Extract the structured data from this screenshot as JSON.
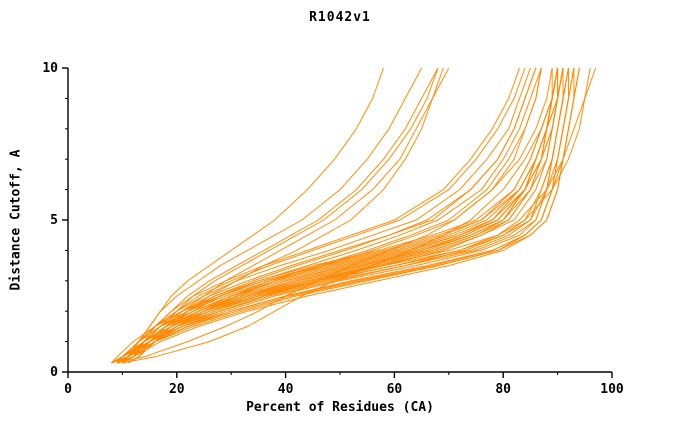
{
  "chart_data": {
    "type": "line",
    "title": "R1042v1",
    "xlabel": "Percent of Residues (CA)",
    "ylabel": "Distance Cutoff, A",
    "xlim": [
      0,
      100
    ],
    "ylim": [
      0,
      10
    ],
    "xticks": [
      0,
      20,
      40,
      60,
      80,
      100
    ],
    "xticks_minor": [
      10,
      30,
      50,
      70,
      90
    ],
    "yticks": [
      0,
      5,
      10
    ],
    "yticks_minor": [
      1,
      2,
      3,
      4,
      6,
      7,
      8,
      9
    ],
    "line_color": "#ff8800",
    "axis_color": "#000000",
    "legend": "none",
    "grid": false,
    "y_samples": [
      0.3,
      0.5,
      1,
      1.5,
      2,
      2.5,
      3,
      3.5,
      4,
      4.5,
      5,
      6,
      7,
      8,
      9,
      10
    ],
    "series": [
      [
        8,
        10,
        15,
        20,
        28,
        36,
        48,
        62,
        75,
        82,
        86,
        88,
        89,
        90,
        91,
        92
      ],
      [
        8,
        10,
        14,
        19,
        26,
        34,
        45,
        58,
        72,
        80,
        85,
        87,
        89,
        90,
        91,
        91
      ],
      [
        9,
        11,
        16,
        22,
        30,
        40,
        52,
        66,
        78,
        84,
        87,
        89,
        90,
        91,
        92,
        93
      ],
      [
        8,
        10,
        15,
        21,
        29,
        38,
        50,
        64,
        76,
        83,
        86,
        88,
        90,
        91,
        92,
        92
      ],
      [
        8,
        11,
        16,
        23,
        32,
        42,
        55,
        68,
        79,
        85,
        88,
        90,
        91,
        92,
        93,
        94
      ],
      [
        9,
        11,
        15,
        20,
        27,
        35,
        46,
        60,
        74,
        81,
        85,
        88,
        89,
        90,
        91,
        92
      ],
      [
        8,
        10,
        14,
        18,
        25,
        33,
        44,
        57,
        70,
        79,
        84,
        87,
        89,
        90,
        91,
        92
      ],
      [
        9,
        12,
        17,
        24,
        33,
        44,
        57,
        70,
        80,
        85,
        88,
        90,
        91,
        92,
        93,
        93
      ],
      [
        8,
        10,
        15,
        21,
        30,
        40,
        53,
        67,
        78,
        84,
        87,
        89,
        90,
        91,
        92,
        93
      ],
      [
        8,
        11,
        16,
        22,
        31,
        41,
        54,
        68,
        79,
        84,
        87,
        89,
        91,
        92,
        93,
        94
      ],
      [
        8,
        10,
        14,
        18,
        24,
        31,
        40,
        52,
        64,
        73,
        79,
        84,
        87,
        88,
        89,
        90
      ],
      [
        9,
        11,
        15,
        19,
        26,
        33,
        43,
        55,
        67,
        75,
        81,
        85,
        87,
        89,
        90,
        90
      ],
      [
        8,
        10,
        13,
        17,
        22,
        29,
        37,
        48,
        60,
        70,
        77,
        83,
        86,
        88,
        89,
        90
      ],
      [
        9,
        11,
        14,
        18,
        23,
        30,
        39,
        50,
        62,
        72,
        78,
        84,
        86,
        88,
        89,
        89
      ],
      [
        8,
        10,
        14,
        19,
        25,
        32,
        42,
        54,
        66,
        74,
        80,
        85,
        87,
        88,
        90,
        91
      ],
      [
        9,
        12,
        16,
        20,
        27,
        35,
        45,
        57,
        68,
        76,
        81,
        85,
        88,
        89,
        90,
        91
      ],
      [
        8,
        10,
        13,
        16,
        21,
        27,
        35,
        45,
        57,
        67,
        75,
        82,
        85,
        87,
        89,
        90
      ],
      [
        9,
        11,
        14,
        17,
        22,
        28,
        36,
        47,
        59,
        69,
        76,
        83,
        86,
        88,
        89,
        90
      ],
      [
        8,
        10,
        13,
        17,
        23,
        30,
        38,
        49,
        61,
        71,
        78,
        83,
        86,
        88,
        89,
        90
      ],
      [
        9,
        11,
        15,
        20,
        26,
        34,
        44,
        56,
        67,
        75,
        80,
        84,
        87,
        89,
        90,
        91
      ],
      [
        8,
        10,
        14,
        18,
        24,
        32,
        41,
        53,
        65,
        73,
        79,
        84,
        86,
        88,
        89,
        90
      ],
      [
        10,
        12,
        16,
        21,
        28,
        36,
        46,
        58,
        69,
        76,
        82,
        86,
        88,
        89,
        90,
        91
      ],
      [
        9,
        11,
        15,
        19,
        25,
        33,
        42,
        54,
        65,
        74,
        80,
        84,
        87,
        88,
        90,
        90
      ],
      [
        8,
        9,
        12,
        16,
        21,
        28,
        36,
        46,
        58,
        68,
        76,
        82,
        85,
        87,
        89,
        90
      ],
      [
        9,
        11,
        14,
        18,
        24,
        31,
        40,
        51,
        63,
        72,
        79,
        84,
        86,
        88,
        89,
        90
      ],
      [
        9,
        11,
        14,
        17,
        21,
        26,
        33,
        41,
        50,
        59,
        66,
        74,
        79,
        82,
        84,
        86
      ],
      [
        10,
        12,
        15,
        18,
        23,
        28,
        35,
        44,
        53,
        61,
        68,
        76,
        80,
        83,
        85,
        87
      ],
      [
        9,
        11,
        13,
        16,
        20,
        25,
        31,
        39,
        48,
        56,
        64,
        72,
        77,
        81,
        83,
        85
      ],
      [
        10,
        12,
        15,
        19,
        24,
        30,
        37,
        46,
        55,
        63,
        70,
        77,
        81,
        84,
        86,
        87
      ],
      [
        9,
        10,
        13,
        16,
        20,
        24,
        30,
        37,
        45,
        53,
        61,
        70,
        75,
        79,
        82,
        84
      ],
      [
        10,
        12,
        14,
        18,
        22,
        27,
        34,
        42,
        51,
        59,
        67,
        74,
        79,
        82,
        84,
        86
      ],
      [
        11,
        13,
        16,
        20,
        25,
        31,
        38,
        47,
        56,
        64,
        71,
        78,
        82,
        84,
        86,
        87
      ],
      [
        9,
        11,
        13,
        16,
        19,
        23,
        29,
        36,
        44,
        52,
        60,
        69,
        74,
        78,
        81,
        83
      ],
      [
        10,
        12,
        14,
        16,
        19,
        22,
        26,
        31,
        36,
        41,
        46,
        53,
        58,
        62,
        65,
        68
      ],
      [
        11,
        13,
        15,
        18,
        21,
        25,
        29,
        34,
        39,
        44,
        49,
        56,
        61,
        64,
        67,
        70
      ],
      [
        9,
        11,
        13,
        15,
        17,
        20,
        24,
        28,
        33,
        38,
        43,
        50,
        55,
        59,
        62,
        65
      ],
      [
        10,
        12,
        14,
        17,
        20,
        23,
        27,
        32,
        37,
        42,
        47,
        54,
        59,
        63,
        66,
        68
      ],
      [
        11,
        13,
        16,
        19,
        22,
        26,
        31,
        36,
        42,
        47,
        52,
        58,
        62,
        65,
        67,
        69
      ],
      [
        10,
        11,
        13,
        15,
        17,
        19,
        22,
        26,
        30,
        34,
        38,
        44,
        49,
        53,
        56,
        58
      ],
      [
        8,
        10,
        14,
        19,
        26,
        35,
        47,
        60,
        72,
        79,
        83,
        88,
        91,
        93,
        95,
        97
      ],
      [
        8,
        10,
        15,
        20,
        28,
        37,
        49,
        62,
        73,
        80,
        84,
        89,
        92,
        94,
        95,
        96
      ],
      [
        10,
        16,
        26,
        33,
        38,
        43,
        49,
        56,
        63,
        69,
        74,
        80,
        84,
        87,
        89,
        90
      ],
      [
        9,
        14,
        22,
        29,
        35,
        40,
        46,
        52,
        59,
        66,
        71,
        78,
        83,
        86,
        88,
        89
      ]
    ]
  }
}
